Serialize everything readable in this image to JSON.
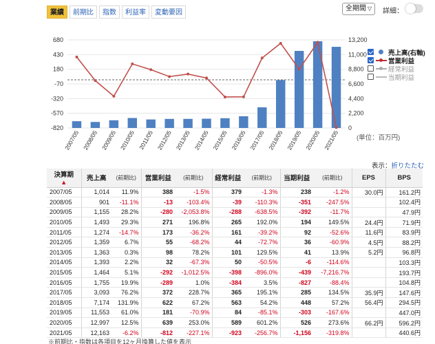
{
  "tabs": [
    {
      "label": "業績",
      "active": true
    },
    {
      "label": "前期比",
      "active": false
    },
    {
      "label": "指数",
      "active": false
    },
    {
      "label": "利益率",
      "active": false
    },
    {
      "label": "変動要因",
      "active": false
    }
  ],
  "period_select": {
    "value": "全期間"
  },
  "detail_label": "詳細：",
  "legend": [
    {
      "label": "売上高(右軸)",
      "checked": true
    },
    {
      "label": "営業利益",
      "checked": true
    },
    {
      "label": "経常利益",
      "checked": false
    },
    {
      "label": "当期利益",
      "checked": false
    }
  ],
  "unit_note": "(単位：百万円)",
  "fold_prefix": "表示：",
  "fold_link": "折りたたむ",
  "colors": {
    "bars": "#4f81c2",
    "line": "#c0504d",
    "active_tab": "#f0c23a",
    "negative": "#d0021b"
  },
  "chart_data": {
    "type": "bar+line",
    "categories": [
      "2007/05",
      "2008/05",
      "2009/05",
      "2010/05",
      "2011/05",
      "2012/05",
      "2013/05",
      "2014/05",
      "2015/05",
      "2016/05",
      "2017/05",
      "2018/05",
      "2019/05",
      "2020/05",
      "2021/05"
    ],
    "series": [
      {
        "name": "売上高(右軸)",
        "type": "bar",
        "axis": "right",
        "values": [
          1014,
          901,
          1155,
          1493,
          1274,
          1359,
          1363,
          1393,
          1464,
          1755,
          3093,
          7174,
          11553,
          12997,
          12163
        ]
      },
      {
        "name": "営業利益",
        "type": "line",
        "axis": "left",
        "values": [
          388,
          -13,
          -280,
          271,
          173,
          55,
          98,
          32,
          -292,
          -289,
          372,
          622,
          181,
          639,
          -812
        ]
      }
    ],
    "left_axis": {
      "ticks": [
        "680",
        "430",
        "180",
        "-70",
        "-320",
        "-570",
        "-820"
      ],
      "ylim": [
        -820,
        680
      ]
    },
    "right_axis": {
      "ticks": [
        "13,200",
        "11,000",
        "8,800",
        "6,600",
        "4,400",
        "2,200",
        "0"
      ],
      "ylim": [
        0,
        13200
      ]
    },
    "zero_reference_line": true
  },
  "table": {
    "headers": [
      {
        "label": "決算期",
        "small": false,
        "sort": "▲"
      },
      {
        "label": "売上高",
        "small": false
      },
      {
        "label": "(前期比)",
        "small": true
      },
      {
        "label": "営業利益",
        "small": false
      },
      {
        "label": "(前期比)",
        "small": true
      },
      {
        "label": "経常利益",
        "small": false
      },
      {
        "label": "(前期比)",
        "small": true
      },
      {
        "label": "当期利益",
        "small": false
      },
      {
        "label": "(前期比)",
        "small": true
      },
      {
        "label": "EPS",
        "small": false
      },
      {
        "label": "BPS",
        "small": false
      }
    ],
    "rows": [
      [
        "2007/05",
        "1,014",
        "11.9%",
        "388",
        "-1.5%",
        "379",
        "-1.3%",
        "238",
        "-1.2%",
        "30.0円",
        "161.2円"
      ],
      [
        "2008/05",
        "901",
        "-11.1%",
        "-13",
        "-103.4%",
        "-39",
        "-110.3%",
        "-351",
        "-247.5%",
        "",
        "102.4円"
      ],
      [
        "2009/05",
        "1,155",
        "28.2%",
        "-280",
        "-2,053.8%",
        "-288",
        "-638.5%",
        "-392",
        "-11.7%",
        "",
        "47.9円"
      ],
      [
        "2010/05",
        "1,493",
        "29.3%",
        "271",
        "196.8%",
        "265",
        "192.0%",
        "194",
        "149.5%",
        "24.4円",
        "71.9円"
      ],
      [
        "2011/05",
        "1,274",
        "-14.7%",
        "173",
        "-36.2%",
        "161",
        "-39.2%",
        "92",
        "-52.6%",
        "11.6円",
        "83.9円"
      ],
      [
        "2012/05",
        "1,359",
        "6.7%",
        "55",
        "-68.2%",
        "44",
        "-72.7%",
        "36",
        "-60.9%",
        "4.5円",
        "88.2円"
      ],
      [
        "2013/05",
        "1,363",
        "0.3%",
        "98",
        "78.2%",
        "101",
        "129.5%",
        "41",
        "13.9%",
        "5.2円",
        "96.8円"
      ],
      [
        "2014/05",
        "1,393",
        "2.2%",
        "32",
        "-67.3%",
        "50",
        "-50.5%",
        "-6",
        "-114.6%",
        "",
        "103.3円"
      ],
      [
        "2015/05",
        "1,464",
        "5.1%",
        "-292",
        "-1,012.5%",
        "-398",
        "-896.0%",
        "-439",
        "-7,216.7%",
        "",
        "193.7円"
      ],
      [
        "2016/05",
        "1,755",
        "19.9%",
        "-289",
        "1.0%",
        "-384",
        "3.5%",
        "-827",
        "-88.4%",
        "",
        "104.8円"
      ],
      [
        "2017/05",
        "3,093",
        "76.2%",
        "372",
        "228.7%",
        "365",
        "195.1%",
        "285",
        "134.5%",
        "35.9円",
        "147.6円"
      ],
      [
        "2018/05",
        "7,174",
        "131.9%",
        "622",
        "67.2%",
        "563",
        "54.2%",
        "448",
        "57.2%",
        "56.4円",
        "294.5円"
      ],
      [
        "2019/05",
        "11,553",
        "61.0%",
        "181",
        "-70.9%",
        "84",
        "-85.1%",
        "-303",
        "-167.6%",
        "",
        "447.0円"
      ],
      [
        "2020/05",
        "12,997",
        "12.5%",
        "639",
        "253.0%",
        "589",
        "601.2%",
        "526",
        "273.6%",
        "66.2円",
        "596.2円"
      ],
      [
        "2021/05",
        "12,163",
        "-6.2%",
        "-812",
        "-227.1%",
        "-923",
        "-256.7%",
        "-1,156",
        "-319.8%",
        "",
        "440.6円"
      ]
    ]
  },
  "footnote": "※前期比・指数は各項目を12ヶ月換算した値を表示"
}
